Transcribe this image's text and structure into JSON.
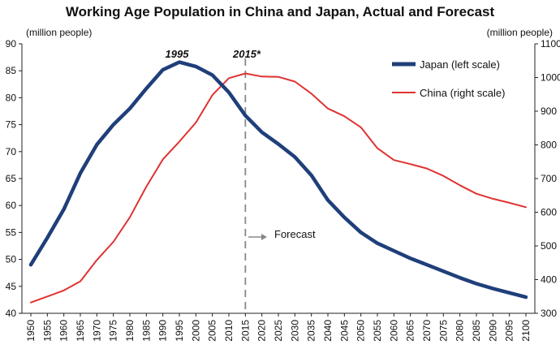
{
  "chart_data": {
    "type": "line",
    "title": "Working Age Population in China and Japan, Actual and Forecast",
    "ylabel_left": "(million people)",
    "ylabel_right": "(million people)",
    "x": [
      1950,
      1955,
      1960,
      1965,
      1970,
      1975,
      1980,
      1985,
      1990,
      1995,
      2000,
      2005,
      2010,
      2015,
      2020,
      2025,
      2030,
      2035,
      2040,
      2045,
      2050,
      2055,
      2060,
      2065,
      2070,
      2075,
      2080,
      2085,
      2090,
      2095,
      2100
    ],
    "ylim_left": [
      40,
      90
    ],
    "ylim_right": [
      300,
      1100
    ],
    "left_ticks": [
      40,
      45,
      50,
      55,
      60,
      65,
      70,
      75,
      80,
      85,
      90
    ],
    "right_ticks": [
      300,
      400,
      500,
      600,
      700,
      800,
      900,
      1000,
      1100
    ],
    "series": [
      {
        "name": "Japan (left scale)",
        "axis": "left",
        "color": "#1f3f7a",
        "values": [
          49.0,
          54.0,
          59.3,
          66.0,
          71.3,
          75.0,
          78.0,
          81.7,
          85.2,
          86.6,
          85.8,
          84.2,
          81.0,
          76.7,
          73.6,
          71.4,
          69.0,
          65.6,
          61.0,
          57.8,
          55.0,
          53.0,
          51.6,
          50.2,
          49.0,
          47.8,
          46.6,
          45.5,
          44.6,
          43.8,
          43.0
        ]
      },
      {
        "name": "China (right scale)",
        "axis": "right",
        "color": "#e03232",
        "values": [
          332,
          350,
          368,
          395,
          458,
          512,
          585,
          676,
          757,
          810,
          866,
          948,
          998,
          1012,
          1003,
          1002,
          988,
          952,
          908,
          885,
          852,
          790,
          755,
          743,
          730,
          708,
          680,
          655,
          640,
          628,
          615
        ]
      }
    ],
    "annotations": {
      "peak_label": "1995",
      "forecast_year_label": "2015*",
      "forecast_label": "Forecast",
      "forecast_divider_x": 2015
    },
    "legend_position": "top-right",
    "grid": false
  }
}
